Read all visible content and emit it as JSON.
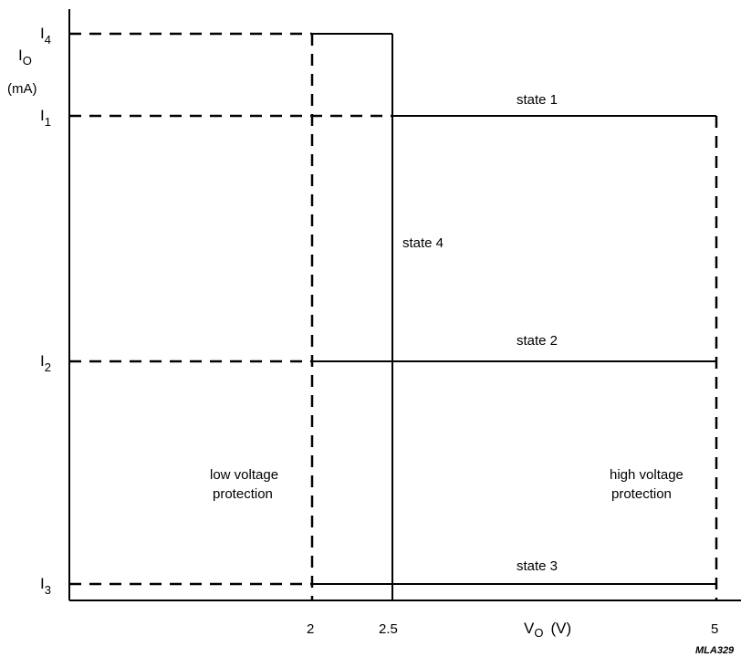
{
  "axes": {
    "y_label": "I",
    "y_label_sub": "O",
    "y_unit": "(mA)",
    "x_label": "V",
    "x_label_sub": "O",
    "x_unit": "(V)"
  },
  "y_ticks": [
    {
      "base": "I",
      "sub": "4"
    },
    {
      "base": "I",
      "sub": "1"
    },
    {
      "base": "I",
      "sub": "2"
    },
    {
      "base": "I",
      "sub": "3"
    }
  ],
  "x_ticks": [
    "2",
    "2.5",
    "5"
  ],
  "states": {
    "s1": "state 1",
    "s2": "state 2",
    "s3": "state 3",
    "s4": "state 4"
  },
  "regions": {
    "low_line1": "low voltage",
    "low_line2": "protection",
    "high_line1": "high voltage",
    "high_line2": "protection"
  },
  "figure_ref": "MLA329"
}
